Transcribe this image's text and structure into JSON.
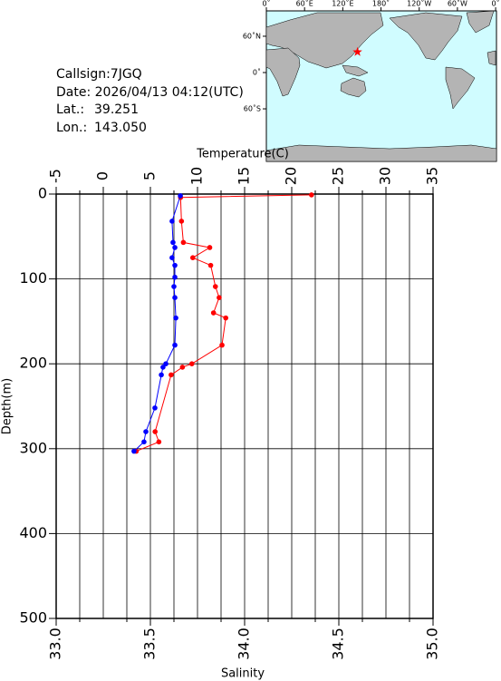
{
  "station": {
    "callsign": "Callsign:7JGQ",
    "date": "Date:  2026/04/13 04:12(UTC)",
    "lat_label": "Lat.:",
    "lat": {
      "value": 39.251,
      "label": "39.251"
    },
    "lon_label": "Lon.:",
    "lon": {
      "value": 143.05,
      "label": "143.050"
    },
    "marker_color": "#ff0000"
  },
  "map": {
    "ocean_color": "#d0fcff",
    "land_color": "#b4b4b4",
    "lonticks": [
      {
        "value": 0,
        "label": "0˚"
      },
      {
        "value": 60,
        "label": "60˚E"
      },
      {
        "value": 120,
        "label": "120˚E"
      },
      {
        "value": 180,
        "label": "180˚"
      },
      {
        "value": 240,
        "label": "120˚W"
      },
      {
        "value": 300,
        "label": "60˚W"
      },
      {
        "value": 360,
        "label": "0˚"
      }
    ],
    "latticks": [
      {
        "value": 60,
        "label": "60˚N"
      },
      {
        "value": 0,
        "label": "0˚"
      },
      {
        "value": -60,
        "label": "60˚S"
      }
    ]
  },
  "chart_data": {
    "type": "profile",
    "xlabel": "Temperature(C)",
    "xlim": [
      -5,
      35
    ],
    "xticks": [
      -5,
      0,
      5,
      10,
      15,
      20,
      25,
      30,
      35
    ],
    "xminorticks": [
      -2.5,
      2.5,
      7.5,
      12.5,
      17.5,
      22.5,
      27.5,
      32.5
    ],
    "x2label": "Salinity",
    "x2lim": [
      33,
      35
    ],
    "x2ticks": [
      {
        "value": 33,
        "label": "33.0"
      },
      {
        "value": 33.5,
        "label": "33.5"
      },
      {
        "value": 34,
        "label": "34.0"
      },
      {
        "value": 34.5,
        "label": "34.5"
      },
      {
        "value": 35,
        "label": "35.0"
      }
    ],
    "ylabel": "Depth(m)",
    "ylim": [
      0,
      500
    ],
    "y_inverted": true,
    "yticks": [
      0,
      100,
      200,
      300,
      400,
      500
    ],
    "grid": true,
    "series": [
      {
        "color": "#ff0000",
        "axis": "x",
        "x": [
          22.1,
          8.2,
          8.3,
          8.5,
          11.3,
          9.5,
          11.4,
          11.9,
          12.3,
          11.7,
          13.0,
          12.6,
          9.4,
          8.4,
          7.2,
          5.5,
          5.9,
          3.5
        ],
        "y": [
          1,
          4,
          32,
          57,
          63,
          75,
          84,
          109,
          122,
          140,
          146,
          178,
          200,
          204,
          213,
          280,
          292,
          303
        ]
      },
      {
        "color": "#0000ff",
        "axis": "x2",
        "x": [
          33.659,
          33.615,
          33.62,
          33.63,
          33.615,
          33.63,
          33.63,
          33.625,
          33.63,
          33.635,
          33.63,
          33.582,
          33.567,
          33.558,
          33.524,
          33.476,
          33.466,
          33.413
        ],
        "y": [
          2,
          32,
          57,
          63,
          75,
          84,
          98,
          109,
          122,
          146,
          178,
          200,
          204,
          213,
          252,
          280,
          292,
          303
        ]
      }
    ]
  }
}
